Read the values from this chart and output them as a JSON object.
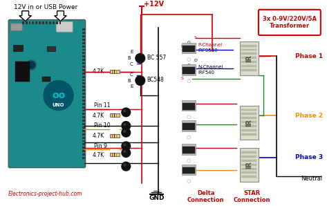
{
  "bg_color": "#ffffff",
  "arduino_color": "#1a8a8a",
  "website_text": "Electronics-project-hub.com",
  "website_color": "#cc0000",
  "header_text": "12V in or USB Power",
  "transformer_label": "3x 0-9V/220V/5A\nTransformer",
  "transformer_box_color": "#cc0000",
  "phase_labels": [
    "Phase 1",
    "Phase 2",
    "Phase 3"
  ],
  "phase_colors": [
    "#cc0000",
    "#ff8800",
    "#0000cc"
  ],
  "neutral_label": "Neutral",
  "delta_label": "Delta\nConnection",
  "star_label": "STAR\nConnection",
  "delta_color": "#cc0000",
  "star_color": "#cc0000",
  "pin_labels": [
    "Pin 11",
    "Pin 10",
    "Pin 9"
  ],
  "transistor_bc557": "BC 557",
  "transistor_bc548": "BC548",
  "mosfet_p_label1": "P-Channel",
  "mosfet_p_label2": "IRF9540",
  "mosfet_n_label1": "N-Channel",
  "mosfet_n_label2": "IRF540",
  "vcc_label": "+12V",
  "gnd_label": "GND",
  "wire_red": "#cc0000",
  "wire_blue": "#0000cc",
  "wire_green": "#228822",
  "wire_orange": "#ff8800",
  "wire_black": "#000000",
  "wire_gray": "#888888",
  "res_color": "#cc8800",
  "res_label": "4.7K"
}
